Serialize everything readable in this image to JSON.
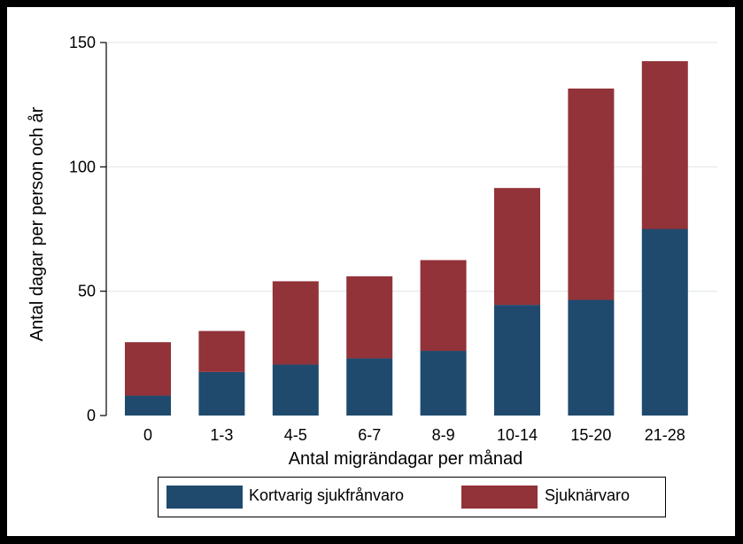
{
  "chart_data": {
    "type": "bar",
    "stacked": true,
    "title": "",
    "xlabel": "Antal migrändagar per månad",
    "ylabel": "Antal dagar per person och år",
    "categories": [
      "0",
      "1-3",
      "4-5",
      "6-7",
      "8-9",
      "10-14",
      "15-20",
      "21-28"
    ],
    "ylim": [
      0,
      150
    ],
    "yticks": [
      "0",
      "50",
      "100",
      "150"
    ],
    "grid": true,
    "legend_position": "bottom",
    "series": [
      {
        "name": "Kortvarig sjukfrånvaro",
        "color": "#1f4a6e",
        "values": [
          8,
          17.5,
          20.5,
          23,
          26,
          44.5,
          46.5,
          75
        ]
      },
      {
        "name": "Sjuknärvaro",
        "color": "#923239",
        "values": [
          21.5,
          16.5,
          33.5,
          33,
          36.5,
          47,
          85,
          67.5
        ]
      }
    ]
  }
}
